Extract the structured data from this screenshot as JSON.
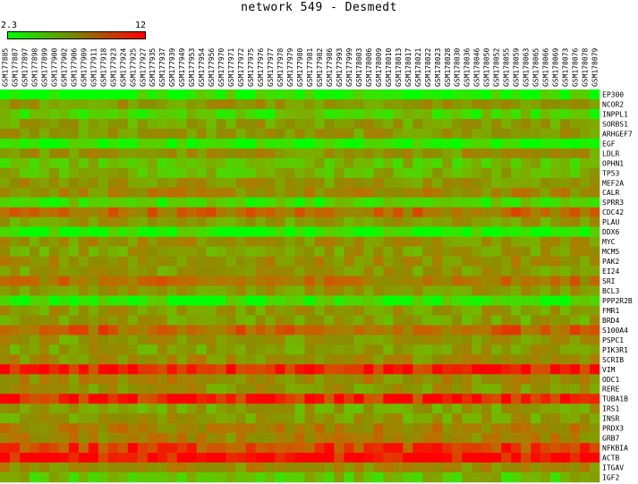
{
  "chart_data": {
    "type": "heatmap",
    "title": "network 549 - Desmedt",
    "colorscale": {
      "min": 2.3,
      "max": 12,
      "low_color": "#00ff00",
      "high_color": "#ff0000",
      "min_label": "2.3",
      "max_label": "12"
    },
    "columns": [
      "GSM177885",
      "GSM177887",
      "GSM177897",
      "GSM177898",
      "GSM177899",
      "GSM177900",
      "GSM177902",
      "GSM177906",
      "GSM177909",
      "GSM177911",
      "GSM177918",
      "GSM177923",
      "GSM177924",
      "GSM177925",
      "GSM177927",
      "GSM177935",
      "GSM177937",
      "GSM177939",
      "GSM177949",
      "GSM177953",
      "GSM177954",
      "GSM177956",
      "GSM177970",
      "GSM177971",
      "GSM177972",
      "GSM177975",
      "GSM177976",
      "GSM177977",
      "GSM177978",
      "GSM177979",
      "GSM177980",
      "GSM177981",
      "GSM177982",
      "GSM177986",
      "GSM177993",
      "GSM177999",
      "GSM178003",
      "GSM178006",
      "GSM178009",
      "GSM178010",
      "GSM178013",
      "GSM178017",
      "GSM178021",
      "GSM178022",
      "GSM178023",
      "GSM178028",
      "GSM178030",
      "GSM178036",
      "GSM178046",
      "GSM178050",
      "GSM178052",
      "GSM178055",
      "GSM178059",
      "GSM178063",
      "GSM178065",
      "GSM178066",
      "GSM178069",
      "GSM178073",
      "GSM178076",
      "GSM178078",
      "GSM178079"
    ],
    "rows": [
      {
        "gene": "EP300",
        "level": 3.2
      },
      {
        "gene": "NCOR2",
        "level": 6.8
      },
      {
        "gene": "INPPL1",
        "level": 4.2
      },
      {
        "gene": "SORBS1",
        "level": 6.5
      },
      {
        "gene": "ARHGEF7",
        "level": 6.8
      },
      {
        "gene": "EGF",
        "level": 2.8
      },
      {
        "gene": "LDLR",
        "level": 7.0
      },
      {
        "gene": "OPHN1",
        "level": 5.2
      },
      {
        "gene": "TP53",
        "level": 5.6
      },
      {
        "gene": "MEF2A",
        "level": 7.0
      },
      {
        "gene": "CALR",
        "level": 7.6
      },
      {
        "gene": "SPRR3",
        "level": 4.0
      },
      {
        "gene": "CDC42",
        "level": 9.0
      },
      {
        "gene": "PLAU",
        "level": 6.5
      },
      {
        "gene": "DDX6",
        "level": 3.0
      },
      {
        "gene": "MYC",
        "level": 7.2
      },
      {
        "gene": "MCM5",
        "level": 6.6
      },
      {
        "gene": "PAK2",
        "level": 7.3
      },
      {
        "gene": "EI24",
        "level": 6.8
      },
      {
        "gene": "SRI",
        "level": 8.6
      },
      {
        "gene": "BCL3",
        "level": 6.9
      },
      {
        "gene": "PPP2R2B",
        "level": 3.2
      },
      {
        "gene": "FMR1",
        "level": 6.8
      },
      {
        "gene": "BRD4",
        "level": 6.4
      },
      {
        "gene": "S100A4",
        "level": 9.4
      },
      {
        "gene": "PSPC1",
        "level": 6.9
      },
      {
        "gene": "PIK3R1",
        "level": 6.6
      },
      {
        "gene": "SCRIB",
        "level": 7.4
      },
      {
        "gene": "VIM",
        "level": 11.5
      },
      {
        "gene": "ODC1",
        "level": 7.6
      },
      {
        "gene": "RERE",
        "level": 7.0
      },
      {
        "gene": "TUBA1B",
        "level": 11.2
      },
      {
        "gene": "IRS1",
        "level": 6.4
      },
      {
        "gene": "INSR",
        "level": 6.6
      },
      {
        "gene": "PRDX3",
        "level": 8.0
      },
      {
        "gene": "GRB7",
        "level": 7.8
      },
      {
        "gene": "NFKBIA",
        "level": 10.5
      },
      {
        "gene": "ACTB",
        "level": 11.8
      },
      {
        "gene": "ITGAV",
        "level": 7.5
      },
      {
        "gene": "IGF2",
        "level": 5.0
      }
    ]
  }
}
